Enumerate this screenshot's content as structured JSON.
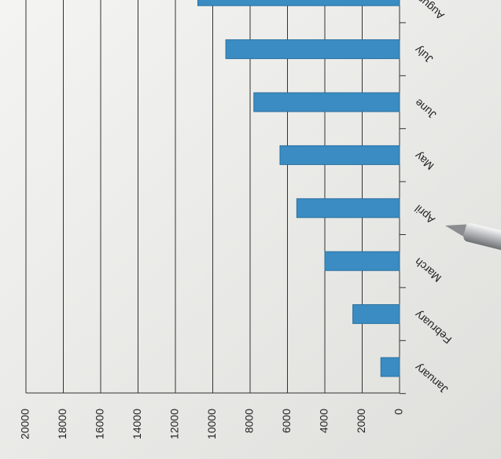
{
  "chart_data": {
    "type": "bar",
    "orientation": "horizontal",
    "categories": [
      "January",
      "February",
      "March",
      "April",
      "May",
      "June",
      "July",
      "August"
    ],
    "values": [
      1000,
      2500,
      4000,
      5500,
      6400,
      7800,
      9300,
      10800
    ],
    "color": "#3a8cc2",
    "xlim": [
      0,
      20000
    ],
    "xticks": [
      0,
      2000,
      4000,
      6000,
      8000,
      10000,
      12000,
      14000,
      16000,
      18000,
      20000
    ],
    "grid": true
  }
}
